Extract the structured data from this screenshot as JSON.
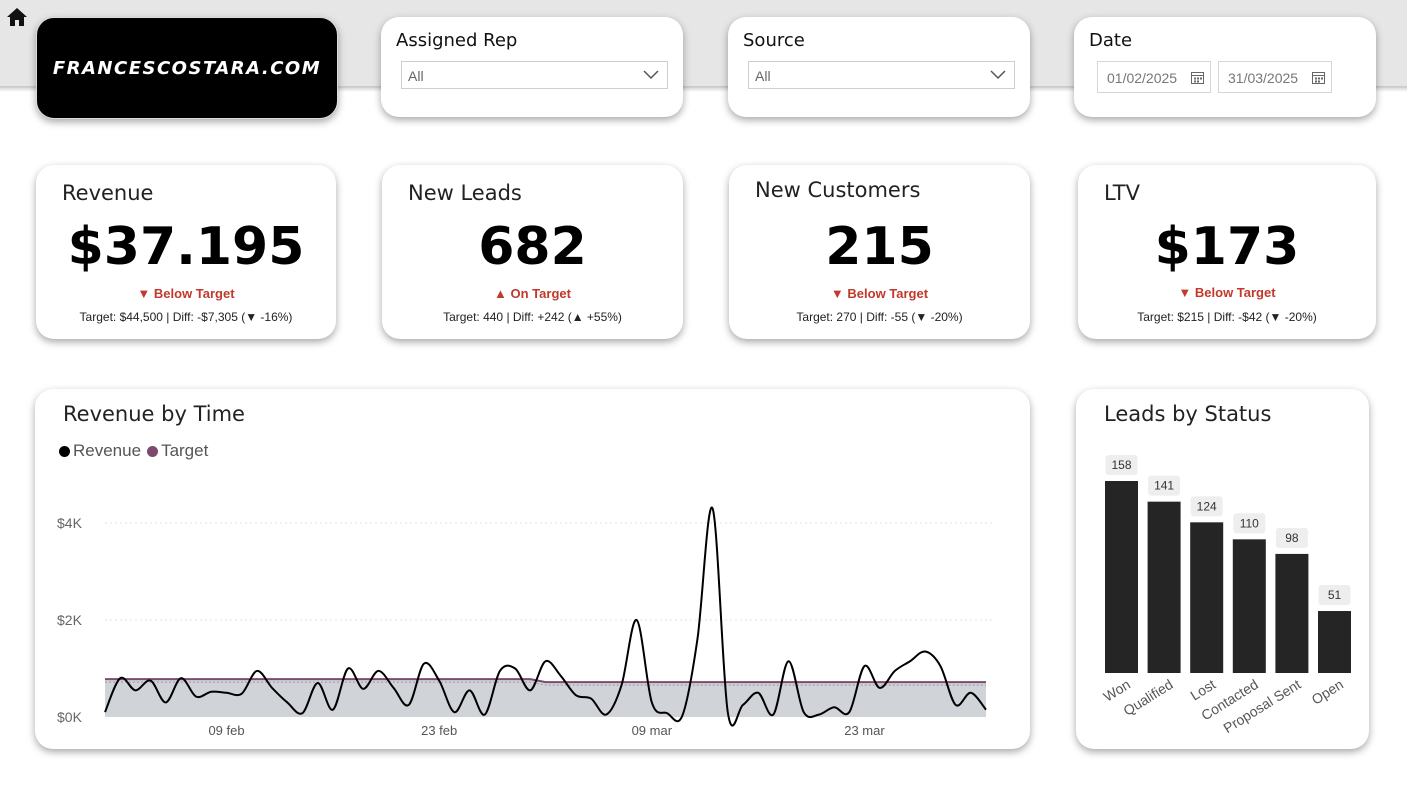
{
  "brand": {
    "logo_text": "FRANCESCOSTARA.COM"
  },
  "slicers": {
    "rep": {
      "title": "Assigned Rep",
      "value": "All"
    },
    "source": {
      "title": "Source",
      "value": "All"
    },
    "date": {
      "title": "Date",
      "start": "01/02/2025",
      "end": "31/03/2025"
    }
  },
  "kpis": [
    {
      "title": "Revenue",
      "value": "$37.195",
      "status": "▼ Below Target",
      "detail": "Target: $44,500 | Diff: -$7,305 (▼ -16%)"
    },
    {
      "title": "New Leads",
      "value": "682",
      "status": "▲ On Target",
      "detail": "Target: 440 | Diff: +242 (▲ +55%)"
    },
    {
      "title": "New Customers",
      "value": "215",
      "status": "▼ Below Target",
      "detail": "Target: 270 | Diff: -55 (▼ -20%)"
    },
    {
      "title": "LTV",
      "value": "$173",
      "status": "▼ Below Target",
      "detail": "Target: $215 | Diff: -$42 (▼ -20%)"
    }
  ],
  "colors": {
    "status_red": "#c0392b",
    "revenue_line": "#000000",
    "target_line": "#7b4a6e",
    "area_fill": "#d0d3d8",
    "bar": "#252525"
  },
  "revenue_chart": {
    "title": "Revenue by Time",
    "legend": [
      "Revenue",
      "Target"
    ],
    "chart_data": {
      "type": "line",
      "x_start": "2025-02-01",
      "x_end": "2025-03-31",
      "ylim": [
        0,
        4500
      ],
      "yticks": [
        "$0K",
        "$2K",
        "$4K"
      ],
      "xticks": [
        "09 feb",
        "23 feb",
        "09 mar",
        "23 mar"
      ],
      "series": [
        {
          "name": "Revenue",
          "values": [
            100,
            800,
            550,
            750,
            300,
            800,
            420,
            520,
            500,
            480,
            950,
            600,
            300,
            80,
            700,
            150,
            1000,
            580,
            950,
            600,
            250,
            1100,
            750,
            100,
            550,
            50,
            950,
            1000,
            550,
            1150,
            850,
            450,
            380,
            50,
            650,
            2000,
            300,
            80,
            20,
            1600,
            4300,
            100,
            250,
            500,
            50,
            1150,
            100,
            50,
            200,
            100,
            1050,
            600,
            950,
            1150,
            1350,
            1050,
            250,
            500,
            150
          ]
        },
        {
          "name": "Target",
          "values": [
            780,
            780,
            780,
            780,
            780,
            780,
            780,
            780,
            780,
            780,
            780,
            780,
            780,
            780,
            780,
            780,
            780,
            780,
            780,
            780,
            780,
            780,
            780,
            780,
            780,
            780,
            780,
            780,
            780,
            720,
            720,
            720,
            720,
            720,
            720,
            720,
            720,
            720,
            720,
            720,
            720,
            720,
            720,
            720,
            720,
            720,
            720,
            720,
            720,
            720,
            720,
            720,
            720,
            720,
            720,
            720,
            720,
            720,
            720
          ]
        }
      ]
    }
  },
  "status_chart": {
    "title": "Leads by Status",
    "chart_data": {
      "type": "bar",
      "categories": [
        "Won",
        "Qualified",
        "Lost",
        "Contacted",
        "Proposal Sent",
        "Open"
      ],
      "values": [
        158,
        141,
        124,
        110,
        98,
        51
      ]
    }
  }
}
